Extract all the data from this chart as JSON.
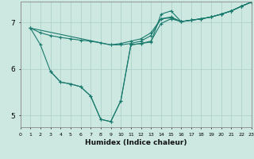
{
  "xlabel": "Humidex (Indice chaleur)",
  "xlim": [
    0,
    23
  ],
  "ylim": [
    4.75,
    7.45
  ],
  "xticks": [
    0,
    1,
    2,
    3,
    4,
    5,
    6,
    7,
    8,
    9,
    10,
    11,
    12,
    13,
    14,
    15,
    16,
    17,
    18,
    19,
    20,
    21,
    22,
    23
  ],
  "yticks": [
    5,
    6,
    7
  ],
  "bg_color": "#cce8e0",
  "line_color": "#1a7a6e",
  "grid_color": "#aacfc8",
  "lines": [
    {
      "x": [
        1,
        2,
        3,
        4,
        5,
        6,
        7,
        8,
        9,
        10,
        11,
        12,
        13,
        14,
        15,
        16,
        17,
        18,
        19,
        20,
        21,
        22,
        23
      ],
      "y": [
        6.88,
        6.52,
        5.95,
        5.72,
        5.68,
        5.62,
        5.42,
        4.92,
        4.87,
        5.32,
        6.52,
        6.55,
        6.58,
        7.18,
        7.25,
        7.02,
        7.05,
        7.08,
        7.12,
        7.18,
        7.25,
        7.35,
        7.44
      ]
    },
    {
      "x": [
        1,
        9,
        10,
        11,
        12,
        13,
        14,
        15,
        16,
        17,
        18,
        19,
        20,
        21,
        22,
        23
      ],
      "y": [
        6.88,
        6.52,
        6.52,
        6.55,
        6.6,
        6.72,
        7.08,
        7.1,
        7.02,
        7.05,
        7.08,
        7.12,
        7.18,
        7.25,
        7.35,
        7.44
      ]
    },
    {
      "x": [
        1,
        2,
        3,
        4,
        5,
        6,
        7,
        8,
        9,
        10,
        11,
        12,
        13,
        14,
        15,
        16,
        17,
        18,
        19,
        20,
        21,
        22,
        23
      ],
      "y": [
        6.88,
        6.78,
        6.72,
        6.68,
        6.65,
        6.62,
        6.6,
        6.56,
        6.52,
        6.55,
        6.6,
        6.65,
        6.78,
        7.08,
        7.12,
        7.02,
        7.05,
        7.08,
        7.12,
        7.18,
        7.25,
        7.35,
        7.44
      ]
    },
    {
      "x": [
        3,
        4,
        5,
        6,
        7,
        8,
        9,
        10,
        11,
        12,
        13,
        14,
        15,
        16,
        17,
        18,
        19,
        20,
        21,
        22,
        23
      ],
      "y": [
        5.95,
        5.72,
        5.68,
        5.62,
        5.42,
        4.92,
        4.87,
        5.32,
        6.52,
        6.55,
        6.6,
        6.98,
        7.08,
        7.02,
        7.05,
        7.08,
        7.12,
        7.18,
        7.25,
        7.35,
        7.44
      ]
    }
  ]
}
